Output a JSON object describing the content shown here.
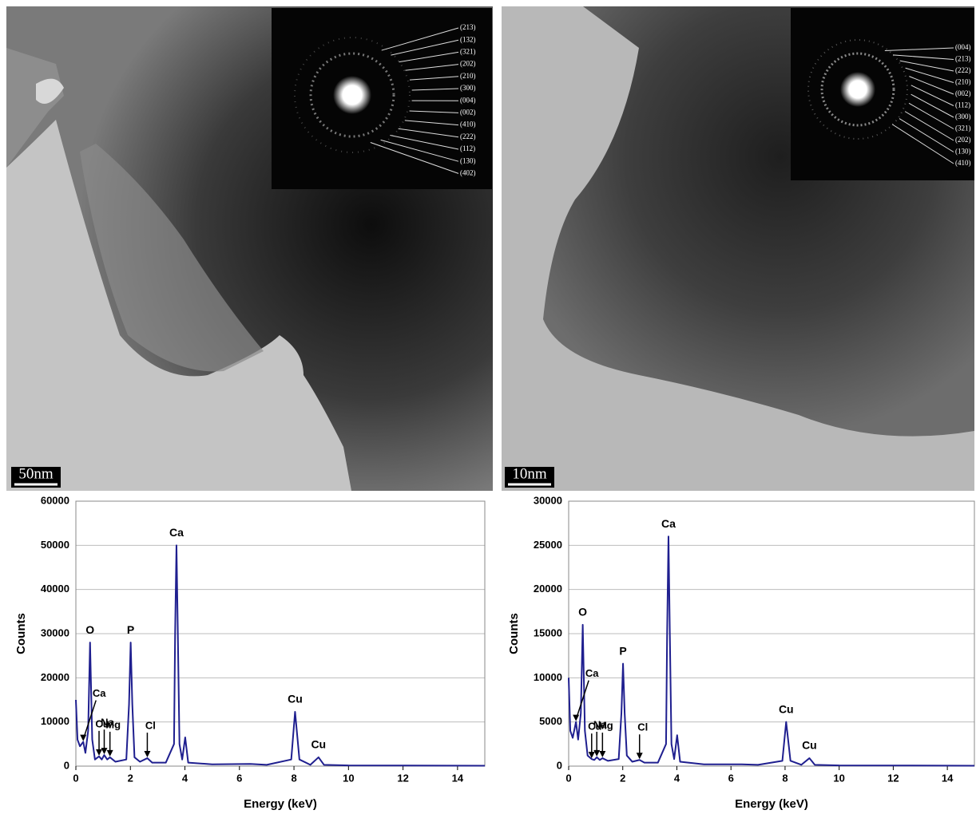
{
  "panels": [
    {
      "scale_bar": "50nm",
      "diffraction_labels": [
        "(213)",
        "(132)",
        "(321)",
        "(202)",
        "(210)",
        "(300)",
        "(004)",
        "(002)",
        "(410)",
        "(222)",
        "(112)",
        "(130)",
        "(402)"
      ]
    },
    {
      "scale_bar": "10nm",
      "diffraction_labels": [
        "(004)",
        "(213)",
        "(222)",
        "(210)",
        "(002)",
        "(112)",
        "(300)",
        "(321)",
        "(202)",
        "(130)",
        "(410)"
      ]
    }
  ],
  "chart_data": [
    {
      "type": "line",
      "x_label": "Energy (keV)",
      "y_label": "Counts",
      "x": [
        0,
        0.06,
        0.15,
        0.27,
        0.35,
        0.45,
        0.52,
        0.6,
        0.7,
        0.85,
        0.95,
        1.04,
        1.15,
        1.25,
        1.45,
        1.85,
        1.95,
        2.01,
        2.07,
        2.15,
        2.35,
        2.62,
        2.8,
        3.3,
        3.6,
        3.64,
        3.69,
        3.74,
        3.8,
        3.9,
        4.01,
        4.12,
        5,
        6.4,
        7,
        7.9,
        8.04,
        8.2,
        8.6,
        8.9,
        9.1,
        10,
        15
      ],
      "series": [
        {
          "color": "#1f1f8f",
          "values": [
            15000,
            6000,
            4500,
            5500,
            3000,
            8000,
            28000,
            6000,
            1500,
            2200,
            1500,
            2500,
            1500,
            2000,
            1000,
            1500,
            14000,
            28000,
            14000,
            2000,
            1000,
            1800,
            800,
            800,
            5000,
            30000,
            50000,
            30000,
            5000,
            1500,
            6500,
            800,
            400,
            500,
            300,
            1500,
            12300,
            1500,
            300,
            2000,
            300,
            150,
            100
          ]
        }
      ],
      "xlim": [
        0,
        15
      ],
      "xticks": [
        0,
        2,
        4,
        6,
        8,
        10,
        12,
        14
      ],
      "ylim": [
        0,
        60000
      ],
      "yticks": [
        0,
        10000,
        20000,
        30000,
        40000,
        50000,
        60000
      ],
      "grid": true,
      "annotations": [
        {
          "text": "O",
          "x": 0.52,
          "y": 28000,
          "arrow": false
        },
        {
          "text": "P",
          "x": 2.01,
          "y": 28000,
          "arrow": false
        },
        {
          "text": "Ca",
          "x": 3.69,
          "y": 50000,
          "arrow": false
        },
        {
          "text": "Cu",
          "x": 8.04,
          "y": 12300,
          "arrow": false
        },
        {
          "text": "Cu",
          "x": 8.9,
          "y": 2000,
          "arrow": false
        },
        {
          "text": "Ca",
          "x": 0.27,
          "y": 5500,
          "arrow": true
        },
        {
          "text": "Cu",
          "x": 0.85,
          "y": 2200,
          "arrow": true
        },
        {
          "text": "Na",
          "x": 1.04,
          "y": 2500,
          "arrow": true
        },
        {
          "text": "Mg",
          "x": 1.25,
          "y": 2000,
          "arrow": true
        },
        {
          "text": "Cl",
          "x": 2.62,
          "y": 1800,
          "arrow": true
        }
      ]
    },
    {
      "type": "line",
      "x_label": "Energy (keV)",
      "y_label": "Counts",
      "x": [
        0,
        0.06,
        0.15,
        0.27,
        0.35,
        0.45,
        0.52,
        0.6,
        0.7,
        0.85,
        0.95,
        1.04,
        1.15,
        1.25,
        1.45,
        1.85,
        1.95,
        2.01,
        2.07,
        2.15,
        2.35,
        2.62,
        2.8,
        3.3,
        3.6,
        3.64,
        3.69,
        3.74,
        3.8,
        3.9,
        4.01,
        4.12,
        5,
        6.4,
        7,
        7.9,
        8.04,
        8.2,
        8.6,
        8.9,
        9.1,
        10,
        15
      ],
      "series": [
        {
          "color": "#1f1f8f",
          "values": [
            10000,
            4000,
            3200,
            5000,
            3000,
            6000,
            16000,
            4000,
            1200,
            800,
            700,
            1000,
            700,
            900,
            600,
            800,
            6000,
            11600,
            6000,
            1200,
            500,
            700,
            400,
            400,
            2500,
            15000,
            26000,
            15000,
            2500,
            800,
            3500,
            500,
            200,
            200,
            150,
            600,
            5000,
            600,
            150,
            900,
            150,
            80,
            50
          ]
        }
      ],
      "xlim": [
        0,
        15
      ],
      "xticks": [
        0,
        2,
        4,
        6,
        8,
        10,
        12,
        14
      ],
      "ylim": [
        0,
        30000
      ],
      "yticks": [
        0,
        5000,
        10000,
        15000,
        20000,
        25000,
        30000
      ],
      "grid": true,
      "annotations": [
        {
          "text": "O",
          "x": 0.52,
          "y": 16000,
          "arrow": false
        },
        {
          "text": "P",
          "x": 2.01,
          "y": 11600,
          "arrow": false
        },
        {
          "text": "Ca",
          "x": 3.69,
          "y": 26000,
          "arrow": false
        },
        {
          "text": "Cu",
          "x": 8.04,
          "y": 5000,
          "arrow": false
        },
        {
          "text": "Cu",
          "x": 8.9,
          "y": 900,
          "arrow": false
        },
        {
          "text": "Ca",
          "x": 0.27,
          "y": 5000,
          "arrow": true
        },
        {
          "text": "Cu",
          "x": 0.85,
          "y": 800,
          "arrow": true
        },
        {
          "text": "Na",
          "x": 1.04,
          "y": 1000,
          "arrow": true
        },
        {
          "text": "Mg",
          "x": 1.25,
          "y": 900,
          "arrow": true
        },
        {
          "text": "Cl",
          "x": 2.62,
          "y": 700,
          "arrow": true
        }
      ]
    }
  ]
}
